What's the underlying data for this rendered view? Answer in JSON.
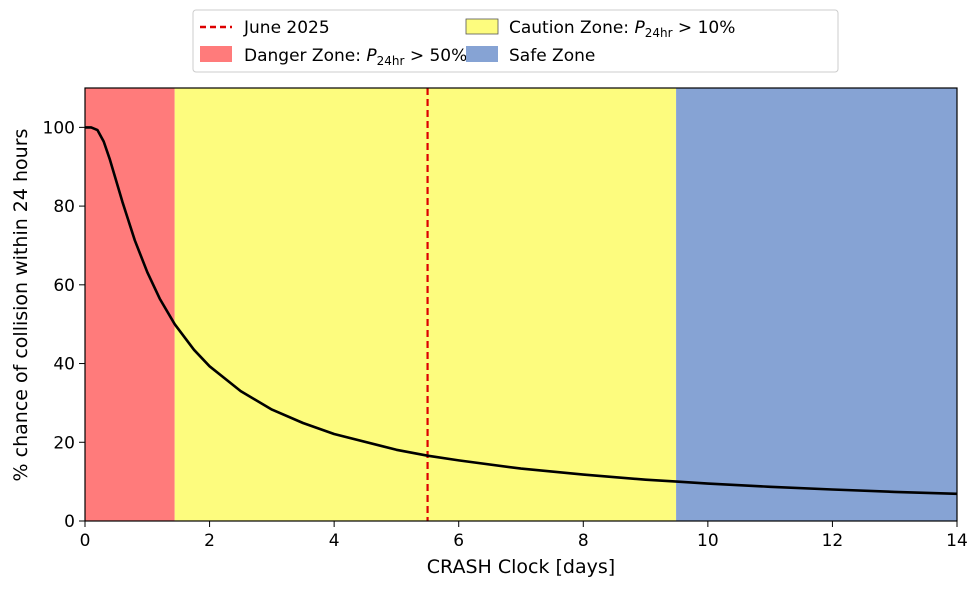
{
  "chart_data": {
    "type": "line",
    "title": "",
    "xlabel": "CRASH Clock [days]",
    "ylabel": "% chance of collision within 24 hours",
    "xlim": [
      0,
      14
    ],
    "ylim": [
      0,
      110
    ],
    "xticks": [
      0,
      2,
      4,
      6,
      8,
      10,
      12,
      14
    ],
    "yticks": [
      0,
      20,
      40,
      60,
      80,
      100
    ],
    "grid": false,
    "legend_placement": "top-center, above plot",
    "series": [
      {
        "color": "#000000",
        "x": [
          0,
          0.1,
          0.2,
          0.3,
          0.4,
          0.5,
          0.6,
          0.8,
          1.0,
          1.2,
          1.44,
          1.75,
          2,
          2.5,
          3,
          3.5,
          4,
          5,
          5.5,
          6,
          7,
          8,
          9,
          9.5,
          10,
          11,
          12,
          13,
          14
        ],
        "y": [
          100,
          100,
          99.3,
          96.4,
          91.8,
          86.5,
          81.1,
          71.3,
          63.2,
          56.5,
          50.0,
          43.5,
          39.3,
          33.0,
          28.3,
          24.9,
          22.1,
          18.1,
          16.6,
          15.4,
          13.3,
          11.8,
          10.5,
          10.0,
          9.5,
          8.7,
          8.0,
          7.4,
          6.9
        ]
      }
    ],
    "regions": [
      {
        "name": "Danger Zone",
        "label_prefix": "Danger Zone: ",
        "x_range": [
          0,
          1.44
        ],
        "color": "#ff7b7b"
      },
      {
        "name": "Caution Zone",
        "label_prefix": "Caution Zone: ",
        "x_range": [
          1.44,
          9.49
        ],
        "color": "#fdfc7e"
      },
      {
        "name": "Safe Zone",
        "label_prefix": "Safe Zone",
        "x_range": [
          9.49,
          14
        ],
        "color": "#86a3d4"
      }
    ],
    "vlines": [
      {
        "name": "June 2025",
        "x": 5.5,
        "color": "#dd0000",
        "style": "dashed"
      }
    ],
    "legend": {
      "june": "June 2025",
      "caution_prefix": "Caution Zone: ",
      "caution_suffix": " > 10%",
      "danger_prefix": "Danger Zone: ",
      "danger_suffix": " > 50%",
      "p_symbol": "P",
      "p_subscript": "24hr",
      "safe": "Safe Zone"
    }
  }
}
